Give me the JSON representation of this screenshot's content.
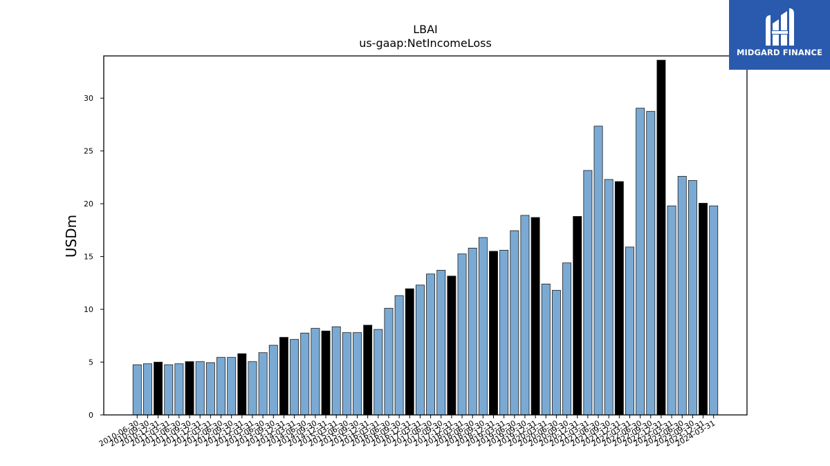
{
  "chart_data": {
    "type": "bar",
    "title": "LBAI",
    "subtitle": "us-gaap:NetIncomeLoss",
    "xlabel": "",
    "ylabel": "USDm",
    "ylim": [
      0,
      34
    ],
    "yticks": [
      0,
      5,
      10,
      15,
      20,
      25,
      30
    ],
    "grid": false,
    "colors": {
      "quarter": "#7aaad4",
      "fiscal_q4": "#000000",
      "edge": "#1a1a1a"
    },
    "categories": [
      "2010-06-30",
      "2010-09-30",
      "2010-12-31",
      "2011-03-31",
      "2011-06-30",
      "2011-09-30",
      "2011-12-31",
      "2012-03-31",
      "2012-06-30",
      "2012-09-30",
      "2012-12-31",
      "2013-03-31",
      "2013-06-30",
      "2013-09-30",
      "2013-12-31",
      "2014-03-31",
      "2014-06-30",
      "2014-09-30",
      "2014-12-31",
      "2015-03-31",
      "2015-06-30",
      "2015-09-30",
      "2015-12-31",
      "2016-03-31",
      "2016-06-30",
      "2016-09-30",
      "2016-12-31",
      "2017-03-31",
      "2017-06-30",
      "2017-09-30",
      "2017-12-31",
      "2018-03-31",
      "2018-06-30",
      "2018-09-30",
      "2018-12-31",
      "2019-03-31",
      "2019-06-30",
      "2019-09-30",
      "2019-12-31",
      "2020-03-31",
      "2020-06-30",
      "2020-09-30",
      "2020-12-31",
      "2021-03-31",
      "2021-06-30",
      "2021-09-30",
      "2021-12-31",
      "2022-03-31",
      "2022-06-30",
      "2022-09-30",
      "2022-12-31",
      "2023-03-31",
      "2023-06-30",
      "2023-09-30",
      "2023-12-31",
      "2024-03-31"
    ],
    "values": [
      4.75,
      4.85,
      5.0,
      4.75,
      4.85,
      5.05,
      5.05,
      4.95,
      5.45,
      5.45,
      5.8,
      5.05,
      5.9,
      6.6,
      7.35,
      7.15,
      7.75,
      8.2,
      7.95,
      8.35,
      7.8,
      7.8,
      8.5,
      8.1,
      10.1,
      11.3,
      11.95,
      12.3,
      13.35,
      13.7,
      13.15,
      15.25,
      15.8,
      16.8,
      15.5,
      15.6,
      17.45,
      18.9,
      18.7,
      12.4,
      11.8,
      14.4,
      18.8,
      23.15,
      27.35,
      22.3,
      22.1,
      15.9,
      29.05,
      28.75,
      33.6,
      19.8,
      22.6,
      22.2,
      20.05,
      19.8
    ],
    "highlight": [
      false,
      false,
      true,
      false,
      false,
      true,
      false,
      false,
      false,
      false,
      true,
      false,
      false,
      false,
      true,
      false,
      false,
      false,
      true,
      false,
      false,
      false,
      true,
      false,
      false,
      false,
      true,
      false,
      false,
      false,
      true,
      false,
      false,
      false,
      true,
      false,
      false,
      false,
      true,
      false,
      false,
      false,
      true,
      false,
      false,
      false,
      true,
      false,
      false,
      false,
      true,
      false,
      false,
      false,
      true,
      false
    ]
  },
  "logo": {
    "text": "MIDGARD FINANCE"
  }
}
